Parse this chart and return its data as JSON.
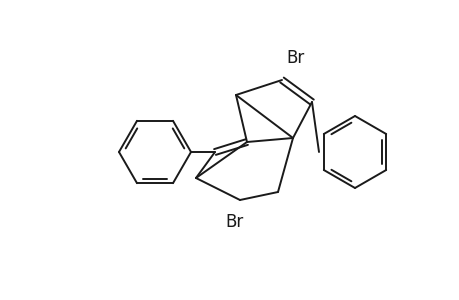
{
  "background_color": "#ffffff",
  "line_color": "#1a1a1a",
  "line_width": 1.4,
  "br_font_size": 12,
  "figsize": [
    4.6,
    3.0
  ],
  "dpi": 100
}
